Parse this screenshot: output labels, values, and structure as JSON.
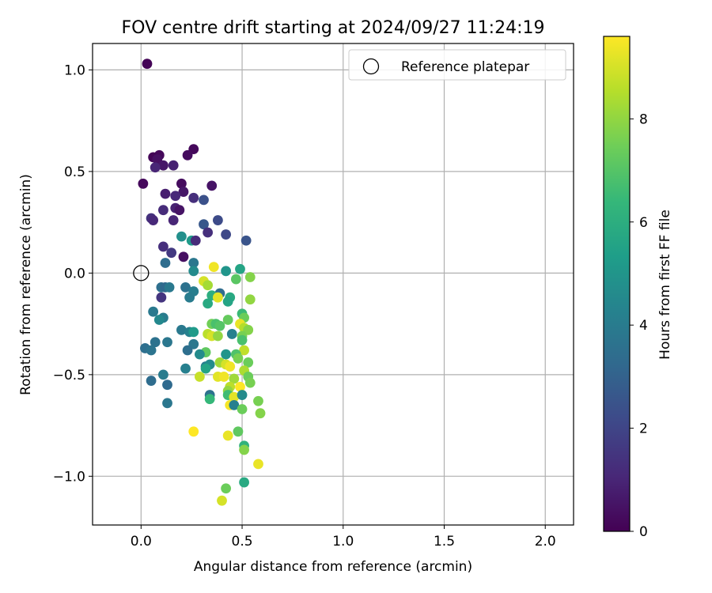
{
  "chart_data": {
    "type": "scatter",
    "title": "FOV centre drift starting at 2024/09/27 11:24:19",
    "xlabel": "Angular distance from reference (arcmin)",
    "ylabel": "Rotation from reference (arcmin)",
    "xlim": [
      -0.24,
      2.14
    ],
    "ylim": [
      -1.24,
      1.13
    ],
    "xticks": [
      0.0,
      0.5,
      1.0,
      1.5,
      2.0
    ],
    "xtick_labels": [
      "0.0",
      "0.5",
      "1.0",
      "1.5",
      "2.0"
    ],
    "yticks": [
      1.0,
      0.5,
      0.0,
      -0.5,
      -1.0
    ],
    "ytick_labels": [
      "1.0",
      "0.5",
      "0.0",
      "−0.5",
      "−1.0"
    ],
    "grid": true,
    "legend": {
      "position": "top-right",
      "entries": [
        "Reference platepar"
      ]
    },
    "reference_point": {
      "x": 0.0,
      "y": 0.0
    },
    "colorbar": {
      "label": "Hours from first FF file",
      "min": 0,
      "max": 9.6,
      "ticks": [
        0,
        2,
        4,
        6,
        8
      ],
      "tick_labels": [
        "0",
        "2",
        "4",
        "6",
        "8"
      ],
      "colormap": [
        "#440154",
        "#482878",
        "#3e4989",
        "#31688e",
        "#26828e",
        "#1f9e89",
        "#35b779",
        "#6ece58",
        "#b5de2b",
        "#fde725"
      ]
    },
    "points": [
      {
        "x": 0.03,
        "y": 1.03,
        "c": 0.1
      },
      {
        "x": 0.26,
        "y": 0.61,
        "c": 0.2
      },
      {
        "x": 0.23,
        "y": 0.58,
        "c": 0.3
      },
      {
        "x": 0.09,
        "y": 0.58,
        "c": 0.2
      },
      {
        "x": 0.06,
        "y": 0.57,
        "c": 0.1
      },
      {
        "x": 0.08,
        "y": 0.56,
        "c": 0.4
      },
      {
        "x": 0.11,
        "y": 0.53,
        "c": 0.6
      },
      {
        "x": 0.16,
        "y": 0.53,
        "c": 0.9
      },
      {
        "x": 0.07,
        "y": 0.52,
        "c": 1.0
      },
      {
        "x": 0.01,
        "y": 0.44,
        "c": 0.2
      },
      {
        "x": 0.2,
        "y": 0.44,
        "c": 0.3
      },
      {
        "x": 0.35,
        "y": 0.43,
        "c": 0.5
      },
      {
        "x": 0.21,
        "y": 0.4,
        "c": 0.6
      },
      {
        "x": 0.12,
        "y": 0.39,
        "c": 0.8
      },
      {
        "x": 0.17,
        "y": 0.38,
        "c": 1.1
      },
      {
        "x": 0.26,
        "y": 0.37,
        "c": 1.3
      },
      {
        "x": 0.31,
        "y": 0.36,
        "c": 2.4
      },
      {
        "x": 0.17,
        "y": 0.32,
        "c": 0.9
      },
      {
        "x": 0.19,
        "y": 0.31,
        "c": 0.5
      },
      {
        "x": 0.11,
        "y": 0.31,
        "c": 1.2
      },
      {
        "x": 0.05,
        "y": 0.27,
        "c": 1.4
      },
      {
        "x": 0.06,
        "y": 0.26,
        "c": 1.1
      },
      {
        "x": 0.16,
        "y": 0.26,
        "c": 1.0
      },
      {
        "x": 0.38,
        "y": 0.26,
        "c": 2.2
      },
      {
        "x": 0.31,
        "y": 0.24,
        "c": 2.6
      },
      {
        "x": 0.33,
        "y": 0.2,
        "c": 1.3
      },
      {
        "x": 0.42,
        "y": 0.19,
        "c": 2.1
      },
      {
        "x": 0.2,
        "y": 0.18,
        "c": 4.8
      },
      {
        "x": 0.25,
        "y": 0.16,
        "c": 5.2
      },
      {
        "x": 0.27,
        "y": 0.16,
        "c": 1.2
      },
      {
        "x": 0.52,
        "y": 0.16,
        "c": 2.5
      },
      {
        "x": 0.11,
        "y": 0.13,
        "c": 1.3
      },
      {
        "x": 0.15,
        "y": 0.1,
        "c": 1.6
      },
      {
        "x": 0.21,
        "y": 0.08,
        "c": 0.4
      },
      {
        "x": 0.12,
        "y": 0.05,
        "c": 3.4
      },
      {
        "x": 0.26,
        "y": 0.05,
        "c": 3.8
      },
      {
        "x": 0.26,
        "y": 0.01,
        "c": 4.6
      },
      {
        "x": 0.42,
        "y": 0.01,
        "c": 5.0
      },
      {
        "x": 0.49,
        "y": 0.02,
        "c": 5.6
      },
      {
        "x": 0.36,
        "y": 0.03,
        "c": 9.4
      },
      {
        "x": 0.31,
        "y": -0.04,
        "c": 9.0
      },
      {
        "x": 0.47,
        "y": -0.03,
        "c": 7.1
      },
      {
        "x": 0.54,
        "y": -0.02,
        "c": 7.8
      },
      {
        "x": 0.33,
        "y": -0.06,
        "c": 8.3
      },
      {
        "x": 0.1,
        "y": -0.07,
        "c": 3.5
      },
      {
        "x": 0.12,
        "y": -0.07,
        "c": 3.3
      },
      {
        "x": 0.14,
        "y": -0.07,
        "c": 3.9
      },
      {
        "x": 0.22,
        "y": -0.07,
        "c": 3.6
      },
      {
        "x": 0.26,
        "y": -0.09,
        "c": 4.1
      },
      {
        "x": 0.39,
        "y": -0.1,
        "c": 3.4
      },
      {
        "x": 0.35,
        "y": -0.11,
        "c": 6.0
      },
      {
        "x": 0.38,
        "y": -0.12,
        "c": 9.2
      },
      {
        "x": 0.1,
        "y": -0.12,
        "c": 1.5
      },
      {
        "x": 0.24,
        "y": -0.12,
        "c": 4.0
      },
      {
        "x": 0.44,
        "y": -0.12,
        "c": 5.8
      },
      {
        "x": 0.54,
        "y": -0.13,
        "c": 8.0
      },
      {
        "x": 0.43,
        "y": -0.14,
        "c": 5.6
      },
      {
        "x": 0.33,
        "y": -0.15,
        "c": 5.8
      },
      {
        "x": 0.06,
        "y": -0.19,
        "c": 3.9
      },
      {
        "x": 0.5,
        "y": -0.2,
        "c": 6.5
      },
      {
        "x": 0.51,
        "y": -0.22,
        "c": 7.4
      },
      {
        "x": 0.11,
        "y": -0.22,
        "c": 4.0
      },
      {
        "x": 0.09,
        "y": -0.23,
        "c": 4.5
      },
      {
        "x": 0.43,
        "y": -0.23,
        "c": 7.3
      },
      {
        "x": 0.35,
        "y": -0.25,
        "c": 7.5
      },
      {
        "x": 0.37,
        "y": -0.25,
        "c": 6.8
      },
      {
        "x": 0.39,
        "y": -0.26,
        "c": 7.0
      },
      {
        "x": 0.49,
        "y": -0.25,
        "c": 9.3
      },
      {
        "x": 0.51,
        "y": -0.27,
        "c": 8.5
      },
      {
        "x": 0.2,
        "y": -0.28,
        "c": 3.9
      },
      {
        "x": 0.24,
        "y": -0.29,
        "c": 4.2
      },
      {
        "x": 0.26,
        "y": -0.29,
        "c": 5.2
      },
      {
        "x": 0.53,
        "y": -0.28,
        "c": 7.8
      },
      {
        "x": 0.33,
        "y": -0.3,
        "c": 8.6
      },
      {
        "x": 0.35,
        "y": -0.31,
        "c": 9.0
      },
      {
        "x": 0.38,
        "y": -0.31,
        "c": 8.0
      },
      {
        "x": 0.45,
        "y": -0.3,
        "c": 4.2
      },
      {
        "x": 0.5,
        "y": -0.31,
        "c": 7.6
      },
      {
        "x": 0.5,
        "y": -0.33,
        "c": 6.8
      },
      {
        "x": 0.07,
        "y": -0.34,
        "c": 3.6
      },
      {
        "x": 0.13,
        "y": -0.34,
        "c": 3.8
      },
      {
        "x": 0.26,
        "y": -0.35,
        "c": 3.8
      },
      {
        "x": 0.02,
        "y": -0.37,
        "c": 3.5
      },
      {
        "x": 0.05,
        "y": -0.38,
        "c": 3.7
      },
      {
        "x": 0.23,
        "y": -0.38,
        "c": 3.5
      },
      {
        "x": 0.51,
        "y": -0.38,
        "c": 8.7
      },
      {
        "x": 0.32,
        "y": -0.39,
        "c": 7.2
      },
      {
        "x": 0.42,
        "y": -0.4,
        "c": 5.0
      },
      {
        "x": 0.47,
        "y": -0.4,
        "c": 6.9
      },
      {
        "x": 0.48,
        "y": -0.42,
        "c": 7.6
      },
      {
        "x": 0.29,
        "y": -0.4,
        "c": 4.6
      },
      {
        "x": 0.39,
        "y": -0.44,
        "c": 8.2
      },
      {
        "x": 0.42,
        "y": -0.45,
        "c": 9.0
      },
      {
        "x": 0.53,
        "y": -0.44,
        "c": 7.4
      },
      {
        "x": 0.32,
        "y": -0.46,
        "c": 4.0
      },
      {
        "x": 0.34,
        "y": -0.45,
        "c": 4.6
      },
      {
        "x": 0.44,
        "y": -0.46,
        "c": 9.4
      },
      {
        "x": 0.22,
        "y": -0.47,
        "c": 4.2
      },
      {
        "x": 0.32,
        "y": -0.47,
        "c": 5.6
      },
      {
        "x": 0.51,
        "y": -0.48,
        "c": 8.4
      },
      {
        "x": 0.11,
        "y": -0.5,
        "c": 4.0
      },
      {
        "x": 0.29,
        "y": -0.51,
        "c": 8.8
      },
      {
        "x": 0.38,
        "y": -0.51,
        "c": 9.2
      },
      {
        "x": 0.41,
        "y": -0.51,
        "c": 9.4
      },
      {
        "x": 0.53,
        "y": -0.51,
        "c": 7.4
      },
      {
        "x": 0.46,
        "y": -0.52,
        "c": 8.2
      },
      {
        "x": 0.05,
        "y": -0.53,
        "c": 3.4
      },
      {
        "x": 0.13,
        "y": -0.55,
        "c": 3.3
      },
      {
        "x": 0.54,
        "y": -0.54,
        "c": 7.6
      },
      {
        "x": 0.44,
        "y": -0.56,
        "c": 8.6
      },
      {
        "x": 0.49,
        "y": -0.56,
        "c": 9.6
      },
      {
        "x": 0.43,
        "y": -0.58,
        "c": 8.0
      },
      {
        "x": 0.34,
        "y": -0.6,
        "c": 3.6
      },
      {
        "x": 0.43,
        "y": -0.6,
        "c": 6.6
      },
      {
        "x": 0.46,
        "y": -0.61,
        "c": 9.2
      },
      {
        "x": 0.5,
        "y": -0.6,
        "c": 4.6
      },
      {
        "x": 0.34,
        "y": -0.62,
        "c": 6.4
      },
      {
        "x": 0.13,
        "y": -0.64,
        "c": 3.8
      },
      {
        "x": 0.44,
        "y": -0.65,
        "c": 9.5
      },
      {
        "x": 0.46,
        "y": -0.65,
        "c": 4.2
      },
      {
        "x": 0.5,
        "y": -0.67,
        "c": 7.4
      },
      {
        "x": 0.58,
        "y": -0.63,
        "c": 7.6
      },
      {
        "x": 0.59,
        "y": -0.69,
        "c": 7.8
      },
      {
        "x": 0.26,
        "y": -0.78,
        "c": 9.6
      },
      {
        "x": 0.48,
        "y": -0.78,
        "c": 7.2
      },
      {
        "x": 0.43,
        "y": -0.8,
        "c": 9.3
      },
      {
        "x": 0.51,
        "y": -0.85,
        "c": 6.2
      },
      {
        "x": 0.51,
        "y": -0.87,
        "c": 7.8
      },
      {
        "x": 0.58,
        "y": -0.94,
        "c": 9.3
      },
      {
        "x": 0.51,
        "y": -1.03,
        "c": 5.8
      },
      {
        "x": 0.42,
        "y": -1.06,
        "c": 7.4
      },
      {
        "x": 0.4,
        "y": -1.12,
        "c": 9.0
      }
    ]
  }
}
